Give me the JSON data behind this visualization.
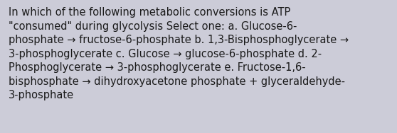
{
  "background_color": "#ccccd8",
  "text_color": "#1a1a1a",
  "font_size": 10.5,
  "text": "In which of the following metabolic conversions is ATP\n\"consumed\" during glycolysis Select one: a. Glucose-6-\nphosphate → fructose-6-phosphate b. 1,3-Bisphosphoglycerate →\n3-phosphoglycerate c. Glucose → glucose-6-phosphate d. 2-\nPhosphoglycerate → 3-phosphoglycerate e. Fructose-1,6-\nbisphosphate → dihydroxyacetone phosphate + glyceraldehyde-\n3-phosphate",
  "figsize": [
    5.58,
    1.88
  ],
  "dpi": 100
}
